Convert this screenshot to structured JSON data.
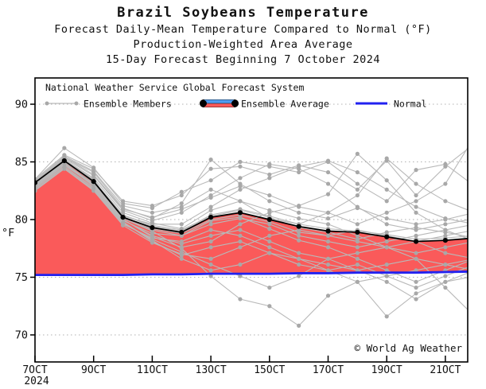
{
  "copyright": "© World Ag Weather",
  "colors": {
    "ensemble_member_line": "#b9b9b9",
    "ensemble_member_dot": "#a8a8a8",
    "ensemble_average_line": "#000000",
    "above_normal_fill": "#fa5a5a",
    "below_normal_band": "#4f9cf0",
    "normal_line": "#2121f0",
    "grid_line": "#b0b0b0",
    "axis": "#000000"
  },
  "chart_data": {
    "type": "line",
    "title": "Brazil Soybeans Temperature",
    "subtitle1": "Forecast Daily-Mean Temperature Compared to Normal (°F)",
    "subtitle2": "Production-Weighted Area Average",
    "subtitle3": "15-Day Forecast Beginning 7 October 2024",
    "ylabel": "°F",
    "ylim": [
      67.7,
      92.3
    ],
    "yticks": [
      70,
      75,
      80,
      85,
      90
    ],
    "grid": true,
    "legend_position": "top-left",
    "legend": {
      "header": "National Weather Service Global Forecast System",
      "members_label": "Ensemble Members",
      "average_label": "Ensemble Average",
      "normal_label": "Normal"
    },
    "x_days": [
      "7OCT",
      "8OCT",
      "9OCT",
      "10OCT",
      "11OCT",
      "12OCT",
      "13OCT",
      "14OCT",
      "15OCT",
      "16OCT",
      "17OCT",
      "18OCT",
      "19OCT",
      "20OCT",
      "21OCT",
      "22OCT"
    ],
    "xtick_labels": [
      "7OCT",
      "9OCT",
      "11OCT",
      "13OCT",
      "15OCT",
      "17OCT",
      "19OCT",
      "21OCT"
    ],
    "xtick_day_indices": [
      0,
      2,
      4,
      6,
      8,
      10,
      12,
      14
    ],
    "x_year_label": "2024",
    "series": {
      "ensemble_average": [
        83.2,
        85.1,
        83.3,
        80.2,
        79.3,
        78.9,
        80.2,
        80.6,
        80.0,
        79.4,
        79.0,
        78.9,
        78.5,
        78.1,
        78.2,
        78.4
      ],
      "normal": [
        75.2,
        75.2,
        75.2,
        75.2,
        75.25,
        75.25,
        75.3,
        75.3,
        75.3,
        75.35,
        75.35,
        75.4,
        75.4,
        75.4,
        75.45,
        75.5
      ],
      "ensemble_members": [
        [
          83.0,
          85.0,
          83.4,
          80.4,
          79.4,
          79.0,
          80.4,
          80.9,
          80.3,
          79.6,
          79.2,
          79.0,
          78.7,
          78.3,
          78.4,
          78.6
        ],
        [
          83.3,
          85.4,
          84.1,
          81.0,
          80.1,
          81.4,
          85.2,
          83.1,
          81.6,
          80.6,
          80.1,
          81.0,
          80.1,
          79.6,
          80.0,
          80.6
        ],
        [
          82.8,
          84.7,
          83.0,
          80.0,
          78.5,
          77.6,
          78.1,
          79.6,
          80.6,
          81.2,
          82.2,
          85.7,
          83.4,
          80.6,
          79.1,
          78.1
        ],
        [
          83.5,
          86.2,
          84.5,
          81.4,
          81.0,
          82.4,
          83.4,
          85.0,
          84.6,
          84.1,
          85.0,
          83.1,
          81.6,
          84.3,
          84.8,
          82.9
        ],
        [
          82.5,
          84.4,
          82.5,
          79.5,
          78.0,
          77.0,
          76.6,
          77.6,
          78.6,
          79.1,
          78.6,
          78.1,
          77.6,
          77.1,
          77.6,
          78.1
        ],
        [
          83.0,
          85.1,
          83.5,
          80.1,
          79.1,
          78.6,
          79.6,
          80.1,
          79.6,
          78.6,
          78.1,
          77.6,
          78.1,
          78.6,
          79.1,
          79.6
        ],
        [
          83.2,
          85.3,
          83.8,
          80.8,
          79.9,
          80.6,
          82.1,
          83.6,
          84.8,
          84.4,
          83.1,
          81.1,
          79.6,
          79.1,
          79.6,
          80.1
        ],
        [
          82.7,
          84.6,
          82.8,
          79.8,
          78.2,
          76.6,
          75.6,
          76.1,
          77.1,
          76.6,
          76.1,
          75.6,
          76.1,
          76.6,
          76.1,
          75.6
        ],
        [
          83.1,
          85.1,
          83.2,
          80.2,
          79.2,
          78.8,
          80.0,
          80.4,
          79.8,
          78.9,
          78.6,
          79.1,
          78.6,
          78.1,
          78.6,
          79.1
        ],
        [
          82.9,
          84.9,
          83.1,
          80.1,
          79.0,
          77.5,
          75.1,
          73.1,
          72.5,
          70.8,
          73.4,
          74.6,
          75.1,
          75.6,
          76.1,
          76.6
        ],
        [
          83.4,
          85.5,
          84.2,
          81.2,
          80.6,
          81.1,
          82.6,
          81.6,
          80.1,
          79.6,
          80.6,
          82.1,
          85.3,
          83.1,
          81.6,
          80.6
        ],
        [
          82.6,
          84.4,
          82.6,
          79.6,
          78.4,
          78.1,
          79.1,
          78.6,
          77.6,
          76.6,
          75.6,
          74.6,
          71.6,
          73.6,
          74.6,
          75.1
        ],
        [
          83.0,
          85.0,
          83.3,
          80.3,
          79.6,
          79.6,
          81.1,
          82.6,
          83.6,
          84.6,
          85.1,
          84.1,
          82.6,
          81.1,
          80.1,
          79.6
        ],
        [
          82.8,
          84.8,
          82.9,
          79.9,
          78.8,
          78.6,
          79.9,
          80.2,
          79.2,
          78.2,
          77.6,
          76.6,
          75.6,
          74.6,
          75.6,
          76.6
        ],
        [
          83.2,
          85.2,
          83.6,
          80.6,
          79.7,
          79.2,
          80.8,
          81.6,
          80.8,
          80.1,
          79.6,
          78.6,
          77.6,
          76.6,
          74.1,
          71.6
        ],
        [
          83.0,
          84.9,
          83.0,
          80.0,
          78.6,
          77.9,
          78.6,
          79.1,
          78.1,
          77.1,
          76.6,
          77.1,
          77.6,
          78.1,
          77.1,
          76.6
        ],
        [
          83.3,
          85.4,
          83.9,
          80.9,
          80.2,
          80.9,
          81.9,
          82.9,
          82.1,
          81.1,
          80.6,
          79.6,
          80.6,
          81.6,
          83.1,
          87.2
        ],
        [
          82.9,
          84.8,
          83.0,
          79.8,
          78.1,
          76.9,
          77.6,
          78.1,
          77.1,
          76.1,
          75.6,
          76.1,
          75.1,
          74.1,
          75.1,
          76.1
        ],
        [
          83.1,
          85.0,
          83.4,
          80.4,
          79.5,
          79.1,
          80.3,
          80.8,
          80.2,
          79.3,
          78.9,
          78.3,
          78.9,
          79.3,
          78.9,
          78.4
        ],
        [
          82.7,
          84.5,
          82.7,
          79.7,
          78.3,
          77.2,
          76.1,
          75.1,
          74.1,
          75.1,
          76.6,
          75.6,
          74.6,
          73.1,
          74.6,
          75.6
        ],
        [
          83.5,
          85.6,
          84.4,
          81.6,
          81.2,
          82.1,
          84.4,
          84.6,
          83.9,
          84.7,
          84.1,
          82.6,
          85.1,
          82.1,
          84.6,
          86.6
        ]
      ]
    }
  }
}
